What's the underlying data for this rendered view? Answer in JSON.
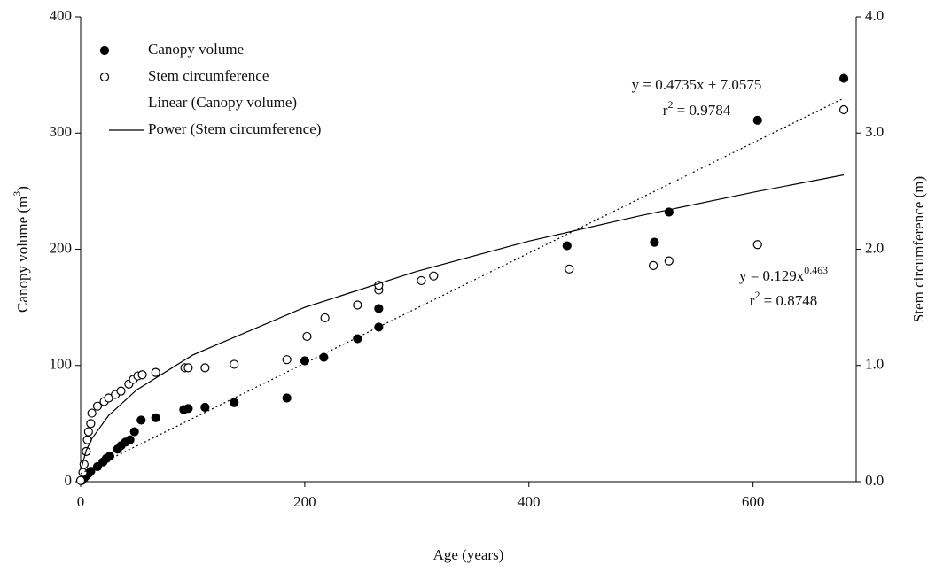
{
  "chart_data": {
    "type": "scatter",
    "xlabel": "Age (years)",
    "ylabel": [
      "Canopy volume (m",
      "3",
      ")"
    ],
    "y2label": [
      "Stem circumference (m)"
    ],
    "xlim": [
      0,
      692
    ],
    "xticks": [
      0,
      200,
      400,
      600
    ],
    "ylim": [
      0,
      400
    ],
    "yticks": [
      0,
      100,
      200,
      300,
      400
    ],
    "y2lim": [
      0,
      4
    ],
    "y2ticks": [
      {
        "value": 0,
        "label": "0.0"
      },
      {
        "value": 1,
        "label": "1.0"
      },
      {
        "value": 2,
        "label": "2.0"
      },
      {
        "value": 3,
        "label": "3.0"
      },
      {
        "value": 4,
        "label": "4.0"
      }
    ],
    "legend": "upper left",
    "series": [
      {
        "name": "Canopy volume",
        "color": "#000000",
        "marker": "filled",
        "x": [
          1,
          3,
          5,
          7,
          9,
          15,
          20,
          23,
          26,
          33,
          36,
          40,
          44,
          48,
          54,
          67,
          92,
          96,
          111,
          137,
          184,
          200,
          217,
          247,
          266,
          266,
          434,
          512,
          525,
          604,
          681
        ],
        "values": [
          1,
          3,
          5,
          7,
          9,
          13,
          17,
          20,
          22,
          28,
          31,
          34,
          36,
          43,
          53,
          55,
          62,
          63,
          64,
          68,
          72,
          104,
          107,
          123,
          133,
          149,
          203,
          206,
          232,
          311,
          347
        ]
      },
      {
        "name": "Stem circumference",
        "color": "#000000",
        "marker": "open",
        "axis": "y2",
        "x": [
          0,
          2,
          3,
          5,
          6,
          7,
          9,
          10,
          15,
          21,
          25,
          31,
          36,
          43,
          47,
          51,
          55,
          67,
          93,
          96,
          111,
          137,
          184,
          202,
          218,
          247,
          266,
          266,
          304,
          315,
          436,
          511,
          525,
          604,
          681
        ],
        "values": [
          0.01,
          0.08,
          0.15,
          0.26,
          0.36,
          0.43,
          0.5,
          0.59,
          0.65,
          0.69,
          0.72,
          0.75,
          0.78,
          0.84,
          0.88,
          0.91,
          0.92,
          0.94,
          0.98,
          0.98,
          0.98,
          1.01,
          1.05,
          1.25,
          1.41,
          1.52,
          1.65,
          1.69,
          1.73,
          1.77,
          1.83,
          1.86,
          1.9,
          2.04,
          3.2
        ]
      },
      {
        "name": "Linear (Canopy volume)",
        "color": "#000000",
        "style": "dotted",
        "x": [
          0,
          681
        ],
        "values": [
          7,
          330
        ]
      },
      {
        "name": "Power (Stem circumference)",
        "color": "#000000",
        "style": "solid",
        "axis": "y2",
        "x": [
          1,
          5,
          10,
          25,
          50,
          100,
          200,
          300,
          400,
          500,
          600,
          681
        ],
        "values": [
          0.13,
          0.27,
          0.37,
          0.57,
          0.79,
          1.09,
          1.5,
          1.81,
          2.07,
          2.29,
          2.49,
          2.64
        ]
      }
    ],
    "annotations": [
      {
        "parts": [
          "y = 0.4735x + 7.0575"
        ]
      },
      {
        "parts": [
          "r",
          "2",
          " = 0.9784"
        ]
      },
      {
        "parts": [
          "y = 0.129x",
          "0.463"
        ]
      },
      {
        "parts": [
          "r",
          "2",
          " = 0.8748"
        ]
      }
    ]
  }
}
